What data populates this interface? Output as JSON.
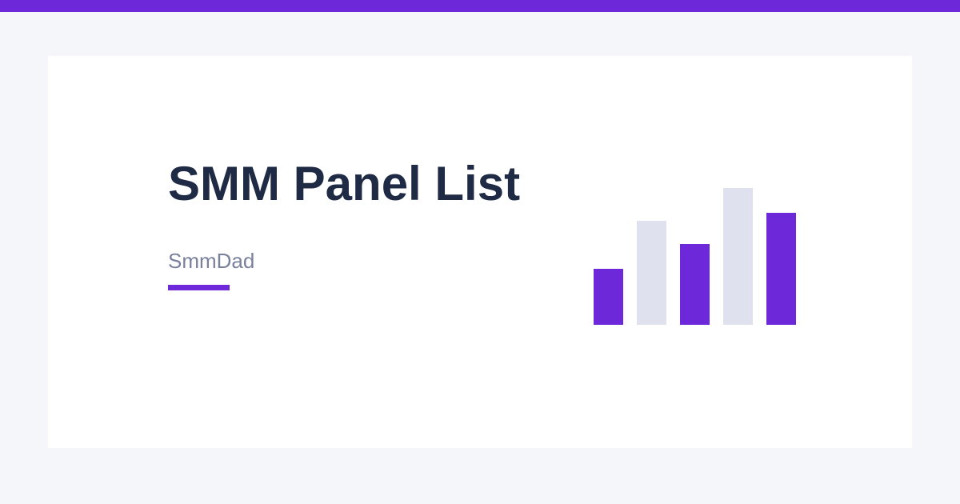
{
  "page": {
    "title": "SMM Panel List",
    "site_name": "SmmDad"
  },
  "colors": {
    "accent": "#6d28d9",
    "title_text": "#1f2a44",
    "subtitle_text": "#7a819c",
    "muted_bar": "#e0e1ee",
    "card_background": "#ffffff",
    "page_background": "#f5f6fa"
  },
  "decorative_bars": [
    {
      "level": 0.41,
      "tone": "accent"
    },
    {
      "level": 0.76,
      "tone": "muted"
    },
    {
      "level": 0.59,
      "tone": "accent"
    },
    {
      "level": 1.0,
      "tone": "muted"
    },
    {
      "level": 0.82,
      "tone": "accent"
    }
  ]
}
